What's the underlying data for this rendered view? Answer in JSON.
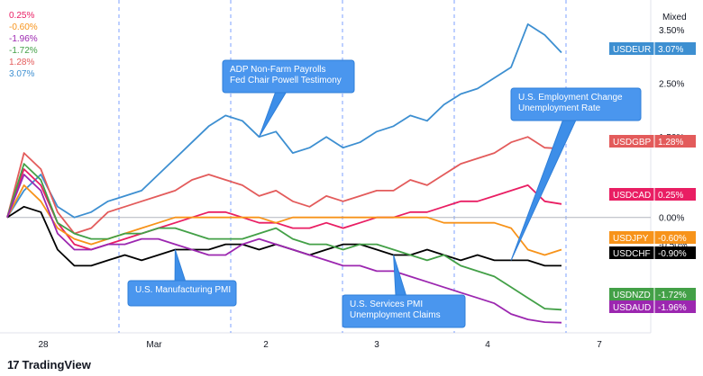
{
  "platform": {
    "name": "TradingView",
    "logo_icon": "tradingview-logo-icon"
  },
  "scale_mode": "Mixed",
  "chart_data": {
    "type": "line",
    "y_unit": "% change",
    "ylim": [
      -2.15,
      3.85
    ],
    "y_ticks": [
      3.5,
      2.5,
      1.5,
      0.5,
      0.0,
      -0.5,
      -1.5
    ],
    "y_tick_labels": [
      "3.50%",
      "2.50%",
      "1.50%",
      "0.50%",
      "0.00%",
      "-0.50%",
      "-1.50%"
    ],
    "x_ticks": [
      "28",
      "Mar",
      "2",
      "3",
      "4",
      "7"
    ],
    "session_breaks": 5,
    "grid": false,
    "zero_line": true,
    "legend": {
      "position": "top-left",
      "entries": [
        "0.25%",
        "-0.60%",
        "-1.96%",
        "-1.72%",
        "1.28%",
        "3.07%"
      ]
    },
    "series": [
      {
        "name": "USDEUR",
        "last_label": "3.07%",
        "color": "#3d8fd1",
        "values": [
          0.0,
          0.5,
          0.8,
          0.2,
          0.0,
          0.1,
          0.3,
          0.4,
          0.5,
          0.8,
          1.1,
          1.4,
          1.7,
          1.9,
          1.8,
          1.5,
          1.6,
          1.2,
          1.3,
          1.5,
          1.3,
          1.4,
          1.6,
          1.7,
          1.9,
          1.8,
          2.1,
          2.3,
          2.4,
          2.6,
          2.8,
          3.6,
          3.4,
          3.07
        ]
      },
      {
        "name": "USDGBP",
        "last_label": "1.28%",
        "color": "#e35b5b",
        "values": [
          0.0,
          1.2,
          0.9,
          0.1,
          -0.3,
          -0.2,
          0.1,
          0.2,
          0.3,
          0.4,
          0.5,
          0.7,
          0.8,
          0.7,
          0.6,
          0.4,
          0.5,
          0.3,
          0.2,
          0.4,
          0.3,
          0.4,
          0.5,
          0.5,
          0.7,
          0.6,
          0.8,
          1.0,
          1.1,
          1.2,
          1.4,
          1.5,
          1.3,
          1.28
        ]
      },
      {
        "name": "USDCAD",
        "last_label": "0.25%",
        "color": "#e91e63",
        "values": [
          0.0,
          0.9,
          0.6,
          -0.1,
          -0.5,
          -0.6,
          -0.5,
          -0.4,
          -0.3,
          -0.2,
          -0.1,
          0.0,
          0.1,
          0.1,
          0.0,
          -0.1,
          -0.1,
          -0.2,
          -0.2,
          -0.1,
          -0.2,
          -0.1,
          0.0,
          0.0,
          0.1,
          0.1,
          0.2,
          0.3,
          0.3,
          0.4,
          0.5,
          0.6,
          0.3,
          0.25
        ]
      },
      {
        "name": "USDJPY",
        "last_label": "-0.60%",
        "color": "#f7931a",
        "values": [
          0.0,
          0.6,
          0.3,
          -0.2,
          -0.4,
          -0.5,
          -0.4,
          -0.3,
          -0.2,
          -0.1,
          0.0,
          0.0,
          0.0,
          0.0,
          0.0,
          0.0,
          -0.1,
          0.0,
          0.0,
          0.0,
          0.0,
          0.0,
          0.0,
          0.0,
          0.0,
          0.0,
          -0.1,
          -0.1,
          -0.1,
          -0.1,
          -0.2,
          -0.6,
          -0.7,
          -0.6
        ]
      },
      {
        "name": "USDCHF",
        "last_label": "-0.90%",
        "color": "#000000",
        "values": [
          0.0,
          0.2,
          0.1,
          -0.6,
          -0.9,
          -0.9,
          -0.8,
          -0.7,
          -0.8,
          -0.7,
          -0.6,
          -0.6,
          -0.6,
          -0.5,
          -0.5,
          -0.6,
          -0.5,
          -0.6,
          -0.7,
          -0.6,
          -0.5,
          -0.5,
          -0.6,
          -0.7,
          -0.7,
          -0.6,
          -0.7,
          -0.8,
          -0.7,
          -0.8,
          -0.8,
          -0.8,
          -0.9,
          -0.9
        ]
      },
      {
        "name": "USDNZD",
        "last_label": "-1.72%",
        "color": "#43a047",
        "values": [
          0.0,
          1.0,
          0.7,
          -0.1,
          -0.3,
          -0.4,
          -0.4,
          -0.3,
          -0.3,
          -0.2,
          -0.2,
          -0.3,
          -0.4,
          -0.4,
          -0.4,
          -0.3,
          -0.2,
          -0.4,
          -0.5,
          -0.5,
          -0.6,
          -0.5,
          -0.5,
          -0.6,
          -0.7,
          -0.8,
          -0.7,
          -0.9,
          -1.0,
          -1.1,
          -1.3,
          -1.5,
          -1.7,
          -1.72
        ]
      },
      {
        "name": "USDAUD",
        "last_label": "-1.96%",
        "color": "#9c27b0",
        "values": [
          0.0,
          0.8,
          0.5,
          -0.3,
          -0.6,
          -0.6,
          -0.5,
          -0.5,
          -0.4,
          -0.4,
          -0.5,
          -0.6,
          -0.7,
          -0.7,
          -0.5,
          -0.4,
          -0.5,
          -0.6,
          -0.7,
          -0.8,
          -0.9,
          -0.9,
          -1.0,
          -1.0,
          -1.1,
          -1.2,
          -1.3,
          -1.4,
          -1.5,
          -1.6,
          -1.8,
          -1.9,
          -1.95,
          -1.96
        ]
      }
    ],
    "annotations": [
      {
        "lines": [
          "ADP Non-Farm Payrolls",
          "Fed Chair Powell Testimony"
        ],
        "anchor_index": 15
      },
      {
        "lines": [
          "U.S. Employment Change",
          "Unemployment Rate"
        ],
        "anchor_index": 30
      },
      {
        "lines": [
          "U.S. Manufacturing PMI"
        ],
        "anchor_index": 10
      },
      {
        "lines": [
          "U.S. Services PMI",
          "Unemployment Claims"
        ],
        "anchor_index": 23
      }
    ]
  }
}
